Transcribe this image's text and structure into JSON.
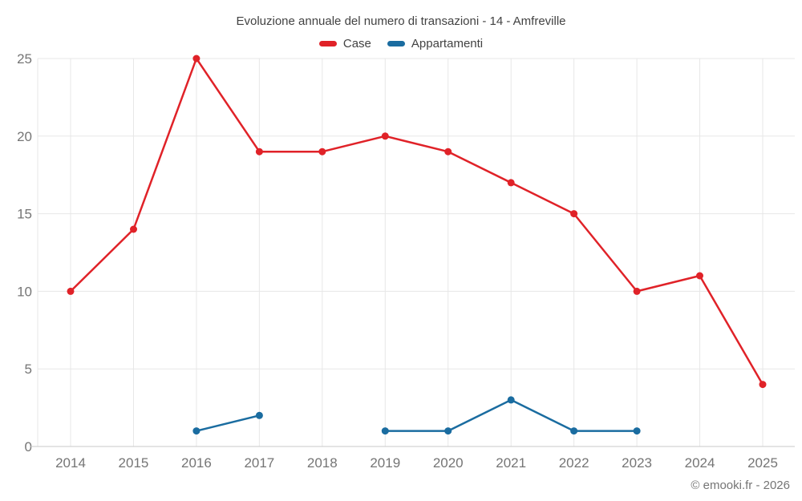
{
  "title": "Evoluzione annuale del numero di transazioni - 14 - Amfreville",
  "legend": {
    "items": [
      {
        "label": "Case",
        "color": "#e02228"
      },
      {
        "label": "Appartamenti",
        "color": "#1a6ca0"
      }
    ]
  },
  "footer": "© emooki.fr - 2026",
  "colors": {
    "grid": "#e7e7e7",
    "axis": "#c9c9c9",
    "tick_text": "#757575",
    "title_text": "#424242",
    "background": "#ffffff",
    "case_red": "#e02228",
    "appartamenti_blue": "#1a6ca0"
  },
  "chart_data": {
    "type": "line",
    "title": "Evoluzione annuale del numero di transazioni - 14 - Amfreville",
    "categories": [
      "2014",
      "2015",
      "2016",
      "2017",
      "2018",
      "2019",
      "2020",
      "2021",
      "2022",
      "2023",
      "2024",
      "2025"
    ],
    "series": [
      {
        "name": "Case",
        "color": "#e02228",
        "values": [
          10,
          14,
          25,
          19,
          19,
          20,
          19,
          17,
          15,
          10,
          11,
          4
        ]
      },
      {
        "name": "Appartamenti",
        "color": "#1a6ca0",
        "values": [
          null,
          null,
          1,
          2,
          null,
          1,
          1,
          3,
          1,
          1,
          null,
          null
        ]
      }
    ],
    "xlabel": "",
    "ylabel": "",
    "ylim": [
      0,
      25
    ],
    "yticks": [
      0,
      5,
      10,
      15,
      20,
      25
    ],
    "grid": true,
    "legend_position": "top",
    "marker": "circle"
  }
}
